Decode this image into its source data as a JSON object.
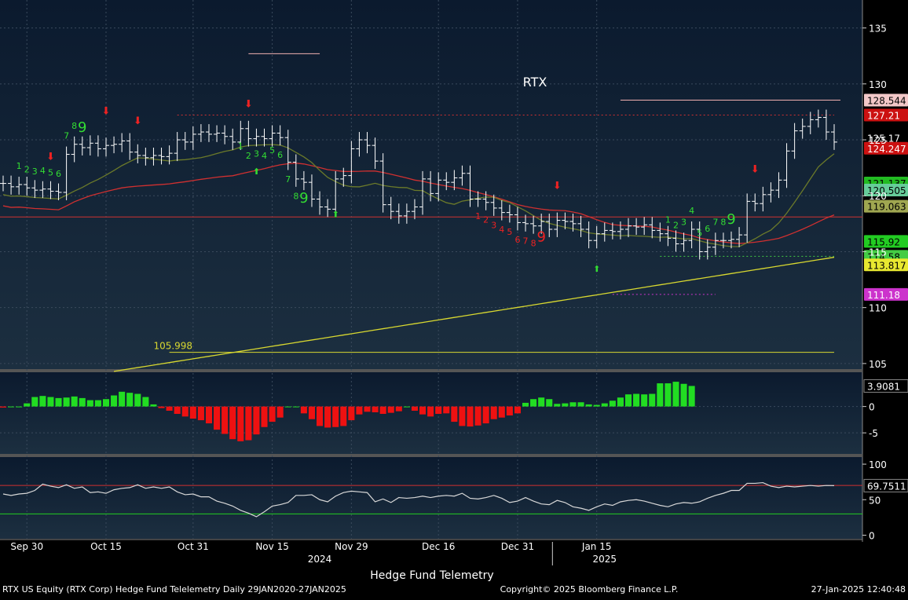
{
  "chart_title": "RTX",
  "footer": {
    "brand": "Hedge Fund Telemetry",
    "left": "RTX US Equity (RTX Corp) Hedge Fund Telelemetry  Daily 29JAN2020-27JAN2025",
    "center": "Copyright© 2025 Bloomberg Finance L.P.",
    "right": "27-Jan-2025 12:40:48"
  },
  "x_axis": {
    "date_labels": [
      "Sep 30",
      "Oct 15",
      "Oct 31",
      "Nov 15",
      "Nov 29",
      "Dec 16",
      "Dec 31",
      "Jan 15"
    ],
    "years": [
      "2024",
      "2025"
    ]
  },
  "colors": {
    "panel_bg_top": "#0c1c30",
    "panel_bg_bottom": "#1c3040",
    "bar": "#ffffff",
    "ma_short": "#6b7a2a",
    "ma_mid": "#d03030",
    "ma_long": "#d8d830",
    "macd_pos": "#22dd22",
    "macd_neg": "#ee1111",
    "rsi_line": "#d8d8d8",
    "countdown_green": "#33dd33",
    "countdown_red": "#ee2222",
    "resistance": "#f0b0b0"
  },
  "chart_data": [
    {
      "type": "ohlc",
      "title": "RTX",
      "ylim": [
        104.5,
        137.5
      ],
      "y_ticks": [
        "105",
        "110",
        "115",
        "120",
        "125",
        "130",
        "135"
      ],
      "price_labels": [
        {
          "value": 128.544,
          "text": "128.544",
          "bg": "#f3c8c8",
          "fg": "#000000"
        },
        {
          "value": 127.21,
          "text": "127.21",
          "bg": "#cc1111",
          "fg": "#ffffff"
        },
        {
          "value": 125.17,
          "text": "125.17",
          "bg": "#000000",
          "fg": "#ffffff"
        },
        {
          "value": 124.247,
          "text": "124.247",
          "bg": "#cc1111",
          "fg": "#ffffff"
        },
        {
          "value": 121.137,
          "text": "121.137",
          "bg": "#22bb22",
          "fg": "#000000"
        },
        {
          "value": 120.505,
          "text": "120.505",
          "bg": "#66cc99",
          "fg": "#000000"
        },
        {
          "value": 119.063,
          "text": "119.063",
          "bg": "#9fa650",
          "fg": "#000000"
        },
        {
          "value": 115.92,
          "text": "115.92",
          "bg": "#22cc22",
          "fg": "#000000"
        },
        {
          "value": 114.58,
          "text": "114.58",
          "bg": "#44cc44",
          "fg": "#000000"
        },
        {
          "value": 113.817,
          "text": "113.817",
          "bg": "#e8e830",
          "fg": "#000000"
        },
        {
          "value": 111.18,
          "text": "111.18",
          "bg": "#cc33cc",
          "fg": "#ffffff"
        }
      ],
      "annotation": {
        "text": "105.998",
        "value": 105.998
      },
      "close": [
        121.1,
        120.8,
        121.0,
        120.7,
        120.5,
        120.6,
        120.4,
        120.3,
        123.7,
        124.6,
        124.3,
        124.7,
        124.2,
        124.5,
        124.6,
        124.9,
        123.9,
        123.6,
        123.4,
        123.6,
        123.5,
        123.8,
        125.0,
        124.8,
        125.5,
        125.7,
        125.5,
        125.6,
        125.3,
        124.8,
        126.0,
        125.1,
        125.3,
        125.1,
        125.6,
        125.2,
        123.0,
        121.5,
        121.2,
        119.7,
        119.0,
        118.8,
        121.5,
        121.8,
        124.2,
        125.0,
        124.5,
        123.1,
        119.2,
        118.6,
        118.2,
        118.6,
        119.0,
        121.5,
        120.2,
        121.4,
        121.2,
        121.6,
        122.0,
        119.7,
        119.7,
        119.4,
        118.9,
        118.5,
        118.3,
        117.6,
        117.5,
        117.3,
        117.7,
        117.0,
        117.8,
        117.7,
        117.5,
        117.0,
        116.0,
        116.6,
        116.9,
        116.8,
        117.0,
        117.3,
        117.2,
        117.4,
        116.9,
        116.6,
        116.2,
        115.7,
        116.0,
        117.0,
        115.0,
        115.4,
        116.0,
        116.0,
        116.1,
        116.5,
        119.5,
        119.3,
        120.1,
        120.5,
        121.4,
        124.0,
        125.8,
        126.2,
        126.8,
        127.0,
        125.7,
        124.8
      ]
    },
    {
      "type": "histogram",
      "name": "MACD",
      "ylim": [
        -9,
        6.5
      ],
      "y_ticks": [
        "0",
        "-5"
      ],
      "last_value": "3.9081",
      "values": [
        -0.2,
        0,
        0,
        0.6,
        1.8,
        2.0,
        1.8,
        1.6,
        1.7,
        1.9,
        1.6,
        1.2,
        1.2,
        1.4,
        2.1,
        2.8,
        2.6,
        2.4,
        1.8,
        0.4,
        -0.3,
        -0.8,
        -1.4,
        -1.9,
        -2.3,
        -2.6,
        -3.2,
        -4.4,
        -5.2,
        -6.2,
        -6.6,
        -6.4,
        -5.3,
        -3.9,
        -2.9,
        -2.1,
        0,
        0,
        -1.3,
        -2.4,
        -3.7,
        -4.0,
        -3.9,
        -3.7,
        -2.6,
        -1.5,
        -1.0,
        -1.1,
        -1.4,
        -1.2,
        -0.9,
        0,
        -0.8,
        -1.5,
        -1.9,
        -1.4,
        -1.3,
        -2.9,
        -3.7,
        -3.8,
        -3.6,
        -3.2,
        -2.4,
        -2.1,
        -1.7,
        -1.3,
        0.7,
        1.4,
        1.7,
        1.4,
        0.5,
        0.6,
        0.8,
        0.8,
        0.4,
        0.3,
        0.6,
        1.1,
        1.7,
        2.3,
        2.4,
        2.3,
        2.4,
        4.4,
        4.4,
        4.7,
        4.3,
        3.9
      ]
    },
    {
      "type": "line",
      "name": "RSI",
      "ylim": [
        -5,
        110
      ],
      "y_ticks": [
        "100",
        "50",
        "0"
      ],
      "overbought": 70,
      "oversold": 30,
      "last_value": "69.7511",
      "values": [
        58,
        56,
        58,
        59,
        63,
        72,
        69,
        67,
        71,
        66,
        68,
        60,
        61,
        59,
        64,
        66,
        67,
        71,
        66,
        68,
        66,
        68,
        61,
        57,
        58,
        54,
        54,
        48,
        45,
        41,
        35,
        31,
        26,
        33,
        41,
        43,
        46,
        56,
        56,
        57,
        50,
        47,
        55,
        60,
        62,
        61,
        60,
        47,
        51,
        46,
        53,
        52,
        53,
        55,
        53,
        55,
        56,
        55,
        59,
        52,
        51,
        53,
        56,
        52,
        46,
        48,
        53,
        48,
        44,
        43,
        49,
        46,
        40,
        38,
        35,
        40,
        44,
        42,
        47,
        49,
        50,
        48,
        45,
        42,
        40,
        44,
        46,
        45,
        47,
        52,
        56,
        59,
        63,
        63,
        73,
        73,
        74,
        69,
        67,
        69,
        68,
        69,
        70,
        69,
        70,
        69.75
      ]
    }
  ]
}
